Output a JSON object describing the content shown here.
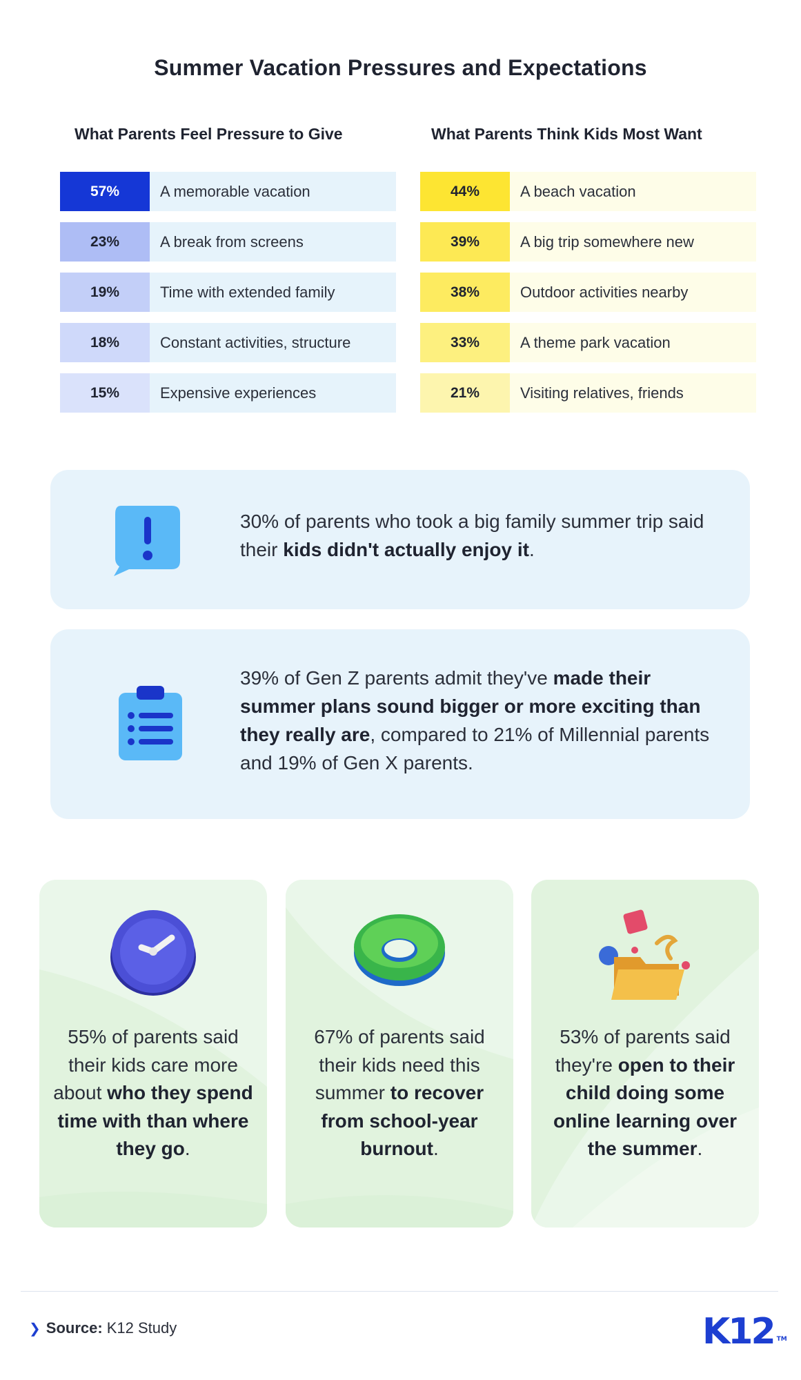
{
  "title": "Summer Vacation Pressures and Expectations",
  "left_table": {
    "header": "What Parents Feel Pressure to Give",
    "rows": [
      {
        "pct": "57%",
        "label": "A memorable vacation",
        "color": "#1537d6",
        "text_color": "#ffffff"
      },
      {
        "pct": "23%",
        "label": "A break from screens",
        "color": "#aebdf5",
        "text_color": "#1f2330"
      },
      {
        "pct": "19%",
        "label": "Time with extended family",
        "color": "#c3cff8",
        "text_color": "#1f2330"
      },
      {
        "pct": "18%",
        "label": "Constant activities, structure",
        "color": "#cfd9fa",
        "text_color": "#1f2330"
      },
      {
        "pct": "15%",
        "label": "Expensive experiences",
        "color": "#dae2fb",
        "text_color": "#1f2330"
      }
    ]
  },
  "right_table": {
    "header": "What Parents Think Kids Most Want",
    "rows": [
      {
        "pct": "44%",
        "label": "A beach vacation",
        "color": "#fde532",
        "text_color": "#1f2330"
      },
      {
        "pct": "39%",
        "label": "A big trip somewhere new",
        "color": "#fde954",
        "text_color": "#1f2330"
      },
      {
        "pct": "38%",
        "label": "Outdoor activities nearby",
        "color": "#fdeb60",
        "text_color": "#1f2330"
      },
      {
        "pct": "33%",
        "label": "A theme park vacation",
        "color": "#fdf07f",
        "text_color": "#1f2330"
      },
      {
        "pct": "21%",
        "label": "Visiting relatives, friends",
        "color": "#fdf5ae",
        "text_color": "#1f2330"
      }
    ]
  },
  "panel1": {
    "icon": "alert-speech-bubble-icon",
    "text_pre": "30% of parents who took a big family summer trip said their ",
    "text_bold": "kids didn't actually enjoy it",
    "text_post": "."
  },
  "panel2": {
    "icon": "clipboard-list-icon",
    "text_pre": "39% of Gen Z parents admit they've ",
    "text_bold": "made their summer plans sound bigger or more exciting than they really are",
    "text_post": ", compared to 21% of Millennial parents and 19% of Gen X parents."
  },
  "cards": [
    {
      "icon": "clock-icon",
      "text_pre": "55% of parents said their kids care more about ",
      "text_bold": "who they spend time with than where they go",
      "text_post": "."
    },
    {
      "icon": "swim-ring-icon",
      "text_pre": "67% of parents said their kids need this summer ",
      "text_bold": "to recover from school-year burnout",
      "text_post": "."
    },
    {
      "icon": "folder-shapes-icon",
      "text_pre": "53% of parents said they're ",
      "text_bold": "open to their child doing some online learning over the summer",
      "text_post": "."
    }
  ],
  "source": {
    "label": "Source:",
    "value": "K12 Study"
  },
  "logo": {
    "text": "K12",
    "tm": "TM"
  },
  "colors": {
    "brand": "#1d3fd1",
    "panel_bg": "#e7f3fb",
    "card_bg": "#eaf7ea"
  }
}
